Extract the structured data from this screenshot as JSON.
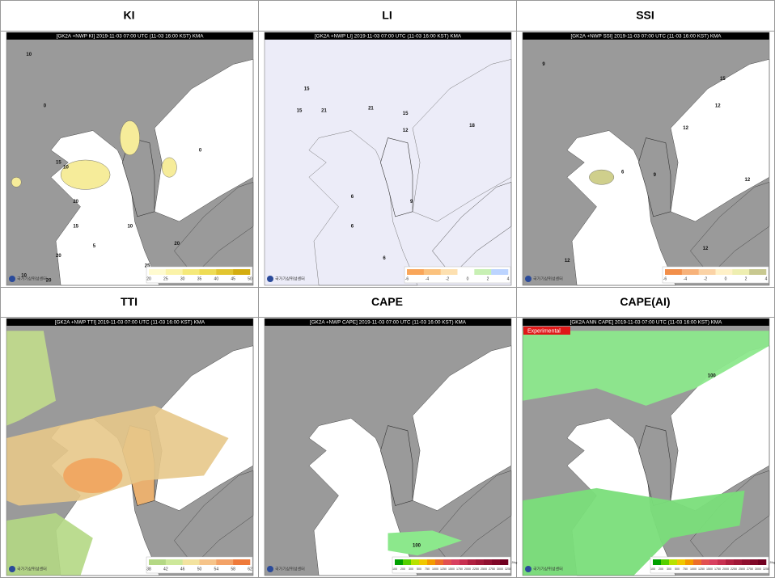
{
  "panels": [
    {
      "title": "KI",
      "header": "[GK2A +NWP KI] 2019-11-03 07:00 UTC (11-03 16:00 KST) KMA",
      "logo_text": "국가기상위성센터",
      "colorbar": {
        "labels": [
          "20",
          "25",
          "30",
          "35",
          "40",
          "45",
          "50"
        ]
      },
      "contour_labels": [
        "10",
        "0",
        "15",
        "10",
        "0",
        "20",
        "15",
        "10",
        "5",
        "20",
        "25",
        "20",
        "10",
        "20"
      ]
    },
    {
      "title": "LI",
      "header": "[GK2A +NWP LI] 2019-11-03 07:00 UTC (11-03 16:00 KST) KMA",
      "logo_text": "국가기상위성센터",
      "colorbar": {
        "labels": [
          "-6",
          "-4",
          "-2",
          "0",
          "2",
          "4"
        ]
      },
      "contour_labels": [
        "15",
        "15",
        "21",
        "21",
        "15",
        "12",
        "18",
        "6",
        "9",
        "6",
        "6"
      ]
    },
    {
      "title": "SSI",
      "header": "[GK2A +NWP SSI] 2019-11-03 07:00 UTC (11-03 16:00 KST) KMA",
      "logo_text": "국가기상위성센터",
      "colorbar": {
        "labels": [
          "-6",
          "-4",
          "-2",
          "0",
          "2",
          "4"
        ]
      },
      "contour_labels": [
        "9",
        "15",
        "12",
        "12",
        "6",
        "9",
        "12",
        "12",
        "12"
      ]
    },
    {
      "title": "TTI",
      "header": "[GK2A +NWP TTI] 2019-11-03 07:00 UTC (11-03 16:00 KST) KMA",
      "logo_text": "국가기상위성센터",
      "colorbar": {
        "labels": [
          "38",
          "42",
          "46",
          "50",
          "54",
          "58",
          "62"
        ]
      },
      "contour_labels": []
    },
    {
      "title": "CAPE",
      "header": "[GK2A +NWP CAPE] 2019-11-03 07:00 UTC (11-03 16:00 KST) KMA",
      "logo_text": "국가기상위성센터",
      "colorbar": {
        "labels": [
          "100",
          "200",
          "300",
          "500",
          "750",
          "1000",
          "1250",
          "1500",
          "1750",
          "2000",
          "2250",
          "2500",
          "2750",
          "3000",
          "3250"
        ],
        "unit": "J/kg"
      },
      "contour_labels": [
        "100"
      ]
    },
    {
      "title": "CAPE(AI)",
      "header": "[GK2A ANN CAPE] 2019-11-03 07:00 UTC (11-03 16:00 KST) KMA",
      "logo_text": "국가기상위성센터",
      "badge": "Experimental",
      "colorbar": {
        "labels": [
          "100",
          "200",
          "300",
          "500",
          "750",
          "1000",
          "1250",
          "1500",
          "1750",
          "2000",
          "2250",
          "2500",
          "2750",
          "3000",
          "3250"
        ],
        "unit": "J/kg"
      },
      "contour_labels": [
        "100"
      ]
    }
  ]
}
